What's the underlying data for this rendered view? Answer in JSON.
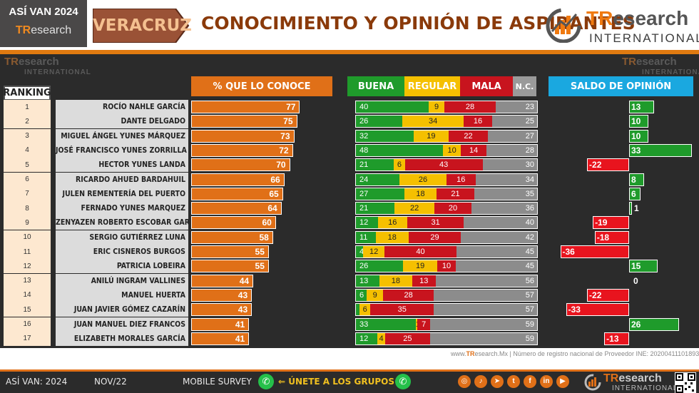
{
  "header": {
    "badge_title": "ASÍ VAN 2024",
    "badge_brand_tr": "TR",
    "badge_brand_rest": "esearch",
    "state": "VERACRUZ",
    "title": "CONOCIMIENTO Y OPINIÓN DE ASPIRANTES",
    "logo_tr": "TR",
    "logo_rest": "esearch",
    "logo_sub": "INTERNATIONAL"
  },
  "watermark": {
    "tr": "TR",
    "rest": "esearch",
    "sub": "INTERNATIONAL"
  },
  "columns": {
    "ranking": "RANKING",
    "know": "% QUE LO CONOCE",
    "good": "BUENA",
    "regular": "REGULAR",
    "bad": "MALA",
    "nc": "N.C.",
    "saldo": "SALDO DE OPINIÓN"
  },
  "colors": {
    "know": "#e07018",
    "good": "#1f9b2b",
    "regular": "#f5c000",
    "bad": "#c8141e",
    "nc": "#8c8c8c",
    "saldo_header": "#1aa8e0",
    "saldo_negative": "#e8141e"
  },
  "chart_data": {
    "type": "table",
    "title": "CONOCIMIENTO Y OPINIÓN DE ASPIRANTES",
    "rows": [
      {
        "rank": "1",
        "name": "ROCÍO NAHLE GARCÍA",
        "conoce": 77,
        "buena": 40,
        "regular": 9,
        "mala": 28,
        "nc": 23,
        "saldo": 13
      },
      {
        "rank": "2",
        "name": "DANTE DELGADO",
        "conoce": 75,
        "buena": 26,
        "regular": 34,
        "mala": 16,
        "nc": 25,
        "saldo": 10
      },
      {
        "rank": "3",
        "name": "MIGUEL ÁNGEL YUNES MÁRQUEZ",
        "conoce": 73,
        "buena": 32,
        "regular": 19,
        "mala": 22,
        "nc": 27,
        "saldo": 10
      },
      {
        "rank": "4",
        "name": "JOSÉ FRANCISCO YUNES ZORRILLA",
        "conoce": 72,
        "buena": 48,
        "regular": 10,
        "mala": 14,
        "nc": 28,
        "saldo": 33
      },
      {
        "rank": "5",
        "name": "HECTOR YUNES LANDA",
        "conoce": 70,
        "buena": 21,
        "regular": 6,
        "mala": 43,
        "nc": 30,
        "saldo": -22
      },
      {
        "rank": "6",
        "name": "RICARDO AHUED BARDAHUIL",
        "conoce": 66,
        "buena": 24,
        "regular": 26,
        "mala": 16,
        "nc": 34,
        "saldo": 8
      },
      {
        "rank": "7",
        "name": "JULEN REMENTERÍA DEL PUERTO",
        "conoce": 65,
        "buena": 27,
        "regular": 18,
        "mala": 21,
        "nc": 35,
        "saldo": 6
      },
      {
        "rank": "8",
        "name": "FERNADO YUNES MARQUEZ",
        "conoce": 64,
        "buena": 21,
        "regular": 22,
        "mala": 20,
        "nc": 36,
        "saldo": 1
      },
      {
        "rank": "9",
        "name": "ZENYAZEN ROBERTO ESCOBAR GARCÍA",
        "conoce": 60,
        "buena": 12,
        "regular": 16,
        "mala": 31,
        "nc": 40,
        "saldo": -19
      },
      {
        "rank": "10",
        "name": "SERGIO GUTIÉRREZ LUNA",
        "conoce": 58,
        "buena": 11,
        "regular": 18,
        "mala": 29,
        "nc": 42,
        "saldo": -18
      },
      {
        "rank": "11",
        "name": "ERIC CISNEROS BURGOS",
        "conoce": 55,
        "buena": 4,
        "regular": 12,
        "mala": 40,
        "nc": 45,
        "saldo": -36
      },
      {
        "rank": "12",
        "name": "PATRICIA LOBEIRA",
        "conoce": 55,
        "buena": 26,
        "regular": 19,
        "mala": 10,
        "nc": 45,
        "saldo": 15
      },
      {
        "rank": "13",
        "name": "ANILÚ INGRAM VALLINES",
        "conoce": 44,
        "buena": 13,
        "regular": 18,
        "mala": 13,
        "nc": 56,
        "saldo": 0
      },
      {
        "rank": "14",
        "name": "MANUEL HUERTA",
        "conoce": 43,
        "buena": 6,
        "regular": 9,
        "mala": 28,
        "nc": 57,
        "saldo": -22
      },
      {
        "rank": "15",
        "name": "JUAN JAVIER GÓMEZ CAZARÍN",
        "conoce": 43,
        "buena": 2,
        "regular": 6,
        "mala": 35,
        "nc": 57,
        "saldo": -33
      },
      {
        "rank": "16",
        "name": "JUAN MANUEL DIEZ FRANCOS",
        "conoce": 41,
        "buena": 33,
        "regular": 1,
        "mala": 7,
        "nc": 59,
        "saldo": 26
      },
      {
        "rank": "17",
        "name": "ELIZABETH MORALES GARCÍA",
        "conoce": 41,
        "buena": 12,
        "regular": 4,
        "mala": 25,
        "nc": 59,
        "saldo": -13
      }
    ]
  },
  "source": {
    "prefix": "www.",
    "tr": "TR",
    "rest": "esearch.Mx | Número de registro nacional de Proveedor INE: 202004111018934 |"
  },
  "footer": {
    "left": "ASÍ VAN: 2024",
    "date": "NOV/22",
    "survey": "MOBILE SURVEY",
    "join": "⇐ ÚNETE A LOS GRUPOS ⇒",
    "whatsapp_icon": "whatsapp-icon",
    "social_icons": [
      "instagram-icon",
      "tiktok-icon",
      "telegram-icon",
      "twitter-icon",
      "facebook-icon",
      "linkedin-icon",
      "youtube-icon"
    ],
    "logo_tr": "TR",
    "logo_rest": "esearch",
    "logo_sub": "INTERNATIONAL"
  }
}
